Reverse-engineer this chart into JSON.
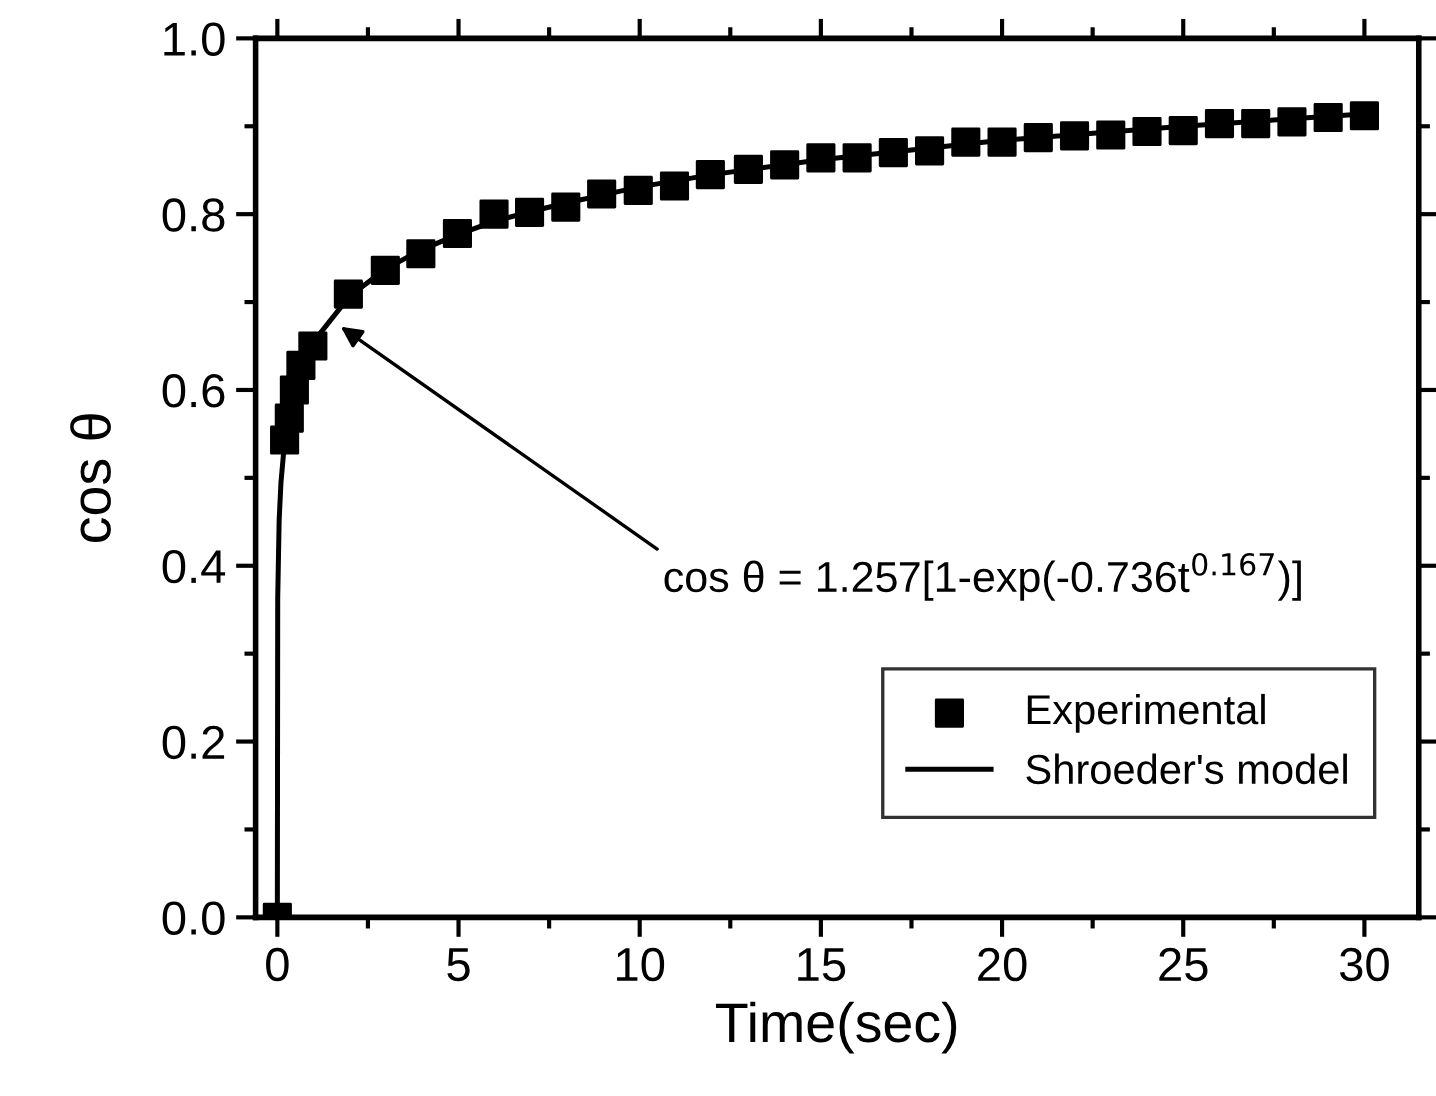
{
  "chart_data": {
    "type": "scatter",
    "xlabel": "Time(sec)",
    "ylabel": "cos θ",
    "xlim": [
      -0.6,
      31.5
    ],
    "ylim": [
      0,
      1.0
    ],
    "xticks": [
      0,
      5,
      10,
      15,
      20,
      25,
      30
    ],
    "yticks": [
      {
        "value": 0,
        "label": "0.0"
      },
      0.2,
      0.4,
      0.6,
      0.8,
      {
        "value": 1.0,
        "label": "1.0"
      }
    ],
    "grid": false,
    "legend": "bottom right",
    "series": [
      {
        "name": "Experimental",
        "marker": "square",
        "color": "#000000",
        "x": [
          0,
          0.2,
          0.33,
          0.47,
          0.65,
          0.98,
          1.96,
          2.98,
          3.96,
          4.97,
          5.98,
          6.96,
          7.96,
          8.95,
          9.96,
          10.96,
          11.95,
          13,
          14,
          15,
          16,
          17,
          18,
          19,
          20,
          21,
          22,
          23,
          24,
          25,
          26,
          27,
          28,
          29,
          30
        ],
        "values": [
          0,
          0.543,
          0.568,
          0.6,
          0.628,
          0.65,
          0.709,
          0.736,
          0.755,
          0.778,
          0.8,
          0.802,
          0.808,
          0.823,
          0.827,
          0.832,
          0.845,
          0.851,
          0.856,
          0.864,
          0.864,
          0.87,
          0.872,
          0.882,
          0.882,
          0.887,
          0.889,
          0.89,
          0.894,
          0.895,
          0.903,
          0.903,
          0.905,
          0.91,
          0.912
        ]
      },
      {
        "name": "Shroeder's model",
        "type": "line",
        "marker": "none",
        "line_style": "solid",
        "color": "#000000",
        "x": [
          0,
          0.01,
          0.05,
          0.1,
          0.2,
          0.5,
          1,
          2,
          3,
          4,
          5,
          6,
          7,
          8,
          9,
          10,
          12,
          15,
          20,
          25,
          30
        ],
        "values": [
          0,
          0.363,
          0.452,
          0.495,
          0.541,
          0.605,
          0.655,
          0.707,
          0.738,
          0.76,
          0.777,
          0.792,
          0.803,
          0.813,
          0.822,
          0.831,
          0.845,
          0.862,
          0.884,
          0.9,
          0.914
        ]
      }
    ],
    "annotations": [
      {
        "text": "cos θ = 1.257[1-exp(-0.736t$^{0.167}$)]",
        "x": 1.75,
        "y": 0.672
      }
    ]
  }
}
